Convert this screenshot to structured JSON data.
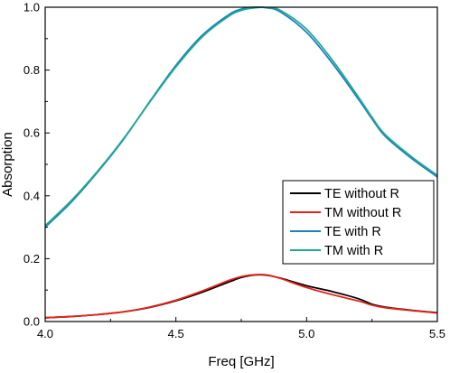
{
  "chart_data": {
    "type": "line",
    "title": "",
    "xlabel": "Freq [GHz]",
    "ylabel": "Absorption",
    "xlim": [
      4.0,
      5.5
    ],
    "ylim": [
      0.0,
      1.0
    ],
    "xticks": [
      "4.0",
      "4.5",
      "5.0",
      "5.5"
    ],
    "yticks": [
      "0.0",
      "0.2",
      "0.4",
      "0.6",
      "0.8",
      "1.0"
    ],
    "grid": false,
    "legend_position": "lower-right",
    "x": [
      4.0,
      4.1,
      4.2,
      4.3,
      4.4,
      4.5,
      4.6,
      4.7,
      4.75,
      4.8,
      4.85,
      4.9,
      5.0,
      5.1,
      5.2,
      5.25,
      5.3,
      5.4,
      5.5
    ],
    "series": [
      {
        "name": "TE without R",
        "color": "#000000",
        "values": [
          0.012,
          0.016,
          0.022,
          0.031,
          0.045,
          0.066,
          0.093,
          0.125,
          0.14,
          0.148,
          0.147,
          0.138,
          0.114,
          0.095,
          0.072,
          0.055,
          0.046,
          0.036,
          0.028
        ]
      },
      {
        "name": "TM without R",
        "color": "#e8231c",
        "values": [
          0.012,
          0.016,
          0.022,
          0.031,
          0.046,
          0.068,
          0.097,
          0.13,
          0.143,
          0.149,
          0.148,
          0.137,
          0.108,
          0.085,
          0.065,
          0.052,
          0.044,
          0.035,
          0.027
        ]
      },
      {
        "name": "TE with R",
        "color": "#1f7fc4",
        "values": [
          0.3,
          0.38,
          0.475,
          0.58,
          0.7,
          0.815,
          0.91,
          0.975,
          0.994,
          1.0,
          0.998,
          0.985,
          0.92,
          0.82,
          0.705,
          0.645,
          0.59,
          0.52,
          0.46
        ]
      },
      {
        "name": "TM with R",
        "color": "#1eaa90",
        "values": [
          0.305,
          0.385,
          0.478,
          0.582,
          0.698,
          0.81,
          0.905,
          0.97,
          0.99,
          0.998,
          0.999,
          0.99,
          0.93,
          0.83,
          0.712,
          0.65,
          0.595,
          0.525,
          0.465
        ]
      }
    ]
  }
}
